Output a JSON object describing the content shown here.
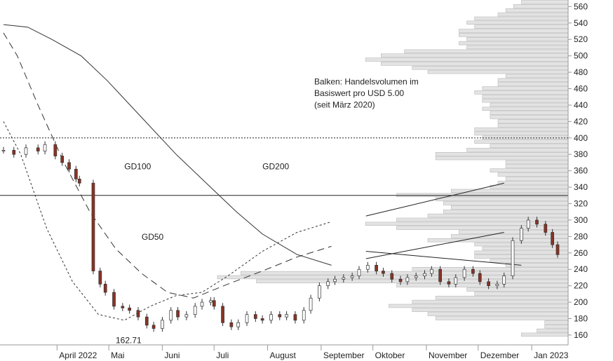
{
  "chart_data": {
    "type": "candlestick",
    "title": "",
    "xlabel": "",
    "ylabel": "",
    "ylim": [
      148,
      568
    ],
    "x_range": [
      "2022-03-01",
      "2023-01-16"
    ],
    "y_ticks": [
      "160",
      "180",
      "200",
      "220",
      "240",
      "260",
      "280",
      "300",
      "320",
      "340",
      "360",
      "380",
      "400",
      "420",
      "440",
      "460",
      "480",
      "500",
      "520",
      "540",
      "560"
    ],
    "x_tick_labels": [
      {
        "date": "2022-04-01",
        "label": "April 2022"
      },
      {
        "date": "2022-05-01",
        "label": "Mai"
      },
      {
        "date": "2022-06-01",
        "label": "Juni"
      },
      {
        "date": "2022-07-01",
        "label": "Juli"
      },
      {
        "date": "2022-08-01",
        "label": "August"
      },
      {
        "date": "2022-09-01",
        "label": "September"
      },
      {
        "date": "2022-10-01",
        "label": "Oktober"
      },
      {
        "date": "2022-11-01",
        "label": "November"
      },
      {
        "date": "2022-12-01",
        "label": "Dezember"
      },
      {
        "date": "2023-01-01",
        "label": "Jan 2023"
      }
    ],
    "closes": [
      [
        "2022-03-01",
        385
      ],
      [
        "2022-03-07",
        380
      ],
      [
        "2022-03-14",
        388
      ],
      [
        "2022-03-21",
        384
      ],
      [
        "2022-03-25",
        392
      ],
      [
        "2022-03-31",
        378
      ],
      [
        "2022-04-04",
        370
      ],
      [
        "2022-04-08",
        362
      ],
      [
        "2022-04-12",
        350
      ],
      [
        "2022-04-14",
        345
      ],
      [
        "2022-04-22",
        238
      ],
      [
        "2022-04-26",
        222
      ],
      [
        "2022-04-29",
        212
      ],
      [
        "2022-05-04",
        195
      ],
      [
        "2022-05-09",
        193
      ],
      [
        "2022-05-13",
        190
      ],
      [
        "2022-05-18",
        182
      ],
      [
        "2022-05-23",
        172
      ],
      [
        "2022-05-27",
        168
      ],
      [
        "2022-06-01",
        178
      ],
      [
        "2022-06-06",
        190
      ],
      [
        "2022-06-10",
        182
      ],
      [
        "2022-06-15",
        185
      ],
      [
        "2022-06-20",
        195
      ],
      [
        "2022-06-24",
        200
      ],
      [
        "2022-06-29",
        202
      ],
      [
        "2022-07-01",
        195
      ],
      [
        "2022-07-06",
        175
      ],
      [
        "2022-07-11",
        170
      ],
      [
        "2022-07-15",
        175
      ],
      [
        "2022-07-20",
        185
      ],
      [
        "2022-07-25",
        180
      ],
      [
        "2022-07-29",
        178
      ],
      [
        "2022-08-03",
        185
      ],
      [
        "2022-08-08",
        182
      ],
      [
        "2022-08-12",
        185
      ],
      [
        "2022-08-17",
        178
      ],
      [
        "2022-08-22",
        190
      ],
      [
        "2022-08-26",
        205
      ],
      [
        "2022-08-31",
        220
      ],
      [
        "2022-09-05",
        225
      ],
      [
        "2022-09-09",
        228
      ],
      [
        "2022-09-14",
        230
      ],
      [
        "2022-09-19",
        232
      ],
      [
        "2022-09-23",
        240
      ],
      [
        "2022-09-28",
        245
      ],
      [
        "2022-10-03",
        238
      ],
      [
        "2022-10-07",
        235
      ],
      [
        "2022-10-12",
        228
      ],
      [
        "2022-10-17",
        225
      ],
      [
        "2022-10-21",
        230
      ],
      [
        "2022-10-26",
        232
      ],
      [
        "2022-10-31",
        235
      ],
      [
        "2022-11-04",
        240
      ],
      [
        "2022-11-09",
        225
      ],
      [
        "2022-11-14",
        222
      ],
      [
        "2022-11-18",
        230
      ],
      [
        "2022-11-23",
        240
      ],
      [
        "2022-11-28",
        235
      ],
      [
        "2022-12-02",
        225
      ],
      [
        "2022-12-07",
        220
      ],
      [
        "2022-12-12",
        222
      ],
      [
        "2022-12-16",
        232
      ],
      [
        "2022-12-21",
        275
      ],
      [
        "2022-12-26",
        290
      ],
      [
        "2022-12-30",
        300
      ],
      [
        "2023-01-04",
        295
      ],
      [
        "2023-01-09",
        285
      ],
      [
        "2023-01-13",
        270
      ],
      [
        "2023-01-16",
        258
      ]
    ],
    "series": [
      {
        "name": "GD200",
        "values": [
          [
            0,
            538
          ],
          [
            14,
            535
          ],
          [
            28,
            520
          ],
          [
            45,
            500
          ],
          [
            60,
            470
          ],
          [
            80,
            425
          ],
          [
            100,
            380
          ],
          [
            120,
            340
          ],
          [
            135,
            310
          ],
          [
            150,
            283
          ],
          [
            170,
            258
          ],
          [
            190,
            245
          ]
        ]
      },
      {
        "name": "GD100",
        "values": [
          [
            0,
            528
          ],
          [
            8,
            500
          ],
          [
            20,
            440
          ],
          [
            35,
            370
          ],
          [
            50,
            310
          ],
          [
            65,
            265
          ],
          [
            80,
            235
          ],
          [
            95,
            212
          ],
          [
            110,
            205
          ],
          [
            130,
            222
          ],
          [
            150,
            238
          ],
          [
            170,
            255
          ],
          [
            190,
            268
          ]
        ]
      },
      {
        "name": "GD50",
        "values": [
          [
            0,
            420
          ],
          [
            10,
            380
          ],
          [
            25,
            290
          ],
          [
            40,
            225
          ],
          [
            55,
            185
          ],
          [
            70,
            178
          ],
          [
            85,
            195
          ],
          [
            100,
            208
          ],
          [
            115,
            212
          ],
          [
            130,
            232
          ],
          [
            150,
            262
          ],
          [
            170,
            285
          ],
          [
            190,
            298
          ]
        ]
      }
    ],
    "horizontal_lines": [
      {
        "value": 330,
        "style": "solid"
      },
      {
        "value": 400,
        "style": "dotted"
      }
    ],
    "channel": {
      "upper": [
        [
          210,
          305
        ],
        [
          290,
          345
        ]
      ],
      "lower": [
        [
          210,
          253
        ],
        [
          290,
          285
        ]
      ]
    },
    "trend_line": [
      [
        210,
        262
      ],
      [
        300,
        245
      ]
    ],
    "volume_profile": {
      "bin_size": 5,
      "bins": [
        [
          160,
          6
        ],
        [
          165,
          4
        ],
        [
          170,
          3
        ],
        [
          175,
          3
        ],
        [
          180,
          17
        ],
        [
          185,
          18
        ],
        [
          190,
          20
        ],
        [
          195,
          23
        ],
        [
          200,
          20
        ],
        [
          205,
          17
        ],
        [
          210,
          12
        ],
        [
          215,
          13
        ],
        [
          220,
          22
        ],
        [
          225,
          40
        ],
        [
          230,
          45
        ],
        [
          235,
          42
        ],
        [
          240,
          20
        ],
        [
          245,
          8
        ],
        [
          250,
          10
        ],
        [
          255,
          12
        ],
        [
          260,
          12
        ],
        [
          265,
          11
        ],
        [
          270,
          12
        ],
        [
          275,
          18
        ],
        [
          280,
          15
        ],
        [
          285,
          14
        ],
        [
          290,
          22
        ],
        [
          295,
          26
        ],
        [
          300,
          22
        ],
        [
          305,
          18
        ],
        [
          310,
          16
        ],
        [
          315,
          15
        ],
        [
          320,
          16
        ],
        [
          325,
          17
        ],
        [
          330,
          22
        ],
        [
          335,
          15
        ],
        [
          340,
          10
        ],
        [
          345,
          9
        ],
        [
          350,
          8
        ],
        [
          355,
          9
        ],
        [
          360,
          10
        ],
        [
          365,
          8
        ],
        [
          370,
          8
        ],
        [
          375,
          17
        ],
        [
          380,
          17
        ],
        [
          385,
          13
        ],
        [
          390,
          10
        ],
        [
          395,
          12
        ],
        [
          400,
          11
        ],
        [
          405,
          12
        ],
        [
          410,
          12
        ],
        [
          415,
          9
        ],
        [
          420,
          9
        ],
        [
          425,
          10
        ],
        [
          430,
          10
        ],
        [
          435,
          11
        ],
        [
          440,
          10
        ],
        [
          445,
          11
        ],
        [
          450,
          11
        ],
        [
          455,
          12
        ],
        [
          460,
          11
        ],
        [
          465,
          9
        ],
        [
          470,
          9
        ],
        [
          475,
          8
        ],
        [
          480,
          18
        ],
        [
          485,
          20
        ],
        [
          490,
          24
        ],
        [
          495,
          26
        ],
        [
          500,
          24
        ],
        [
          505,
          21
        ],
        [
          510,
          13
        ],
        [
          515,
          14
        ],
        [
          520,
          13
        ],
        [
          525,
          14
        ],
        [
          530,
          14
        ],
        [
          535,
          12
        ],
        [
          540,
          13
        ],
        [
          545,
          12
        ],
        [
          550,
          9
        ],
        [
          555,
          8
        ],
        [
          560,
          7
        ],
        [
          565,
          6
        ]
      ]
    },
    "annotations": [
      {
        "text": "GD200",
        "x": 150,
        "y": 362
      },
      {
        "text": "GD100",
        "x": 70,
        "y": 362
      },
      {
        "text": "GD50",
        "x": 80,
        "y": 276
      },
      {
        "text": "162.71",
        "x": 65,
        "y": 150
      },
      {
        "text": "Balken: Handelsvolumen im",
        "x": 180,
        "y": 465
      },
      {
        "text": "Basiswert pro USD 5.00",
        "x": 180,
        "y": 451
      },
      {
        "text": "(seit März 2020)",
        "x": 180,
        "y": 437
      }
    ],
    "legend": "none",
    "grid": false
  }
}
